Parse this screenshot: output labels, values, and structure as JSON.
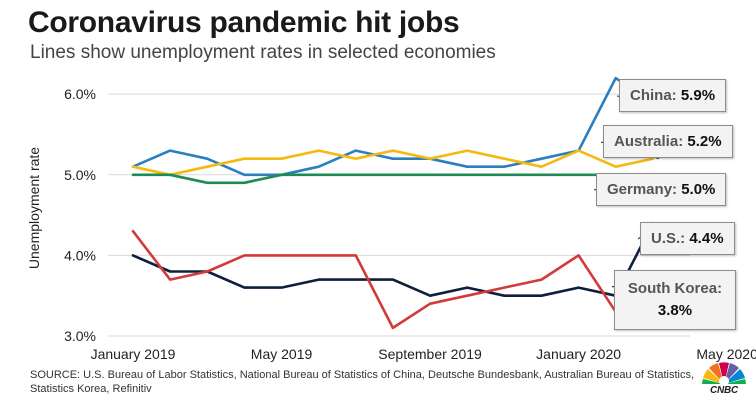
{
  "title": "Coronavirus pandemic hit jobs",
  "subtitle": "Lines show unemployment rates in selected economies",
  "source": "SOURCE: U.S. Bureau of Labor Statistics, National Bureau of Statistics of China, Deutsche Bundesbank, Australian Bureau of Statistics, Statistics Korea, Refinitiv",
  "logo": {
    "text": "CNBC",
    "icon": "nbc-peacock-icon"
  },
  "callouts": [
    {
      "name": "China:",
      "value": "5.9%"
    },
    {
      "name": "Australia:",
      "value": "5.2%"
    },
    {
      "name": "Germany:",
      "value": "5.0%"
    },
    {
      "name": "U.S.:",
      "value": "4.4%"
    },
    {
      "name": "South Korea:",
      "value": "3.8%"
    }
  ],
  "chart_data": {
    "type": "line",
    "title": "Coronavirus pandemic hit jobs",
    "subtitle": "Lines show unemployment rates in selected economies",
    "xlabel": "",
    "ylabel": "Unemployment rate",
    "x": [
      "2019-01",
      "2019-02",
      "2019-03",
      "2019-04",
      "2019-05",
      "2019-06",
      "2019-07",
      "2019-08",
      "2019-09",
      "2019-10",
      "2019-11",
      "2019-12",
      "2020-01",
      "2020-02",
      "2020-03",
      "2020-04"
    ],
    "x_ticks": [
      "January 2019",
      "May 2019",
      "September 2019",
      "January 2020",
      "May 2020"
    ],
    "y_ticks": [
      "3.0%",
      "4.0%",
      "5.0%",
      "6.0%"
    ],
    "ylim": [
      2.95,
      6.3
    ],
    "grid": true,
    "series": [
      {
        "name": "China",
        "color": "#2a7fc1",
        "values": [
          5.1,
          5.3,
          5.2,
          5.0,
          5.0,
          5.1,
          5.3,
          5.2,
          5.2,
          5.1,
          5.1,
          5.2,
          5.3,
          6.2,
          5.9,
          null
        ]
      },
      {
        "name": "Australia",
        "color": "#f5b90f",
        "values": [
          5.1,
          5.0,
          5.1,
          5.2,
          5.2,
          5.3,
          5.2,
          5.3,
          5.2,
          5.3,
          5.2,
          5.1,
          5.3,
          5.1,
          5.2,
          null
        ]
      },
      {
        "name": "Germany",
        "color": "#1e8a55",
        "values": [
          5.0,
          5.0,
          4.9,
          4.9,
          5.0,
          5.0,
          5.0,
          5.0,
          5.0,
          5.0,
          5.0,
          5.0,
          5.0,
          5.0,
          5.0,
          null
        ]
      },
      {
        "name": "U.S.",
        "color": "#0e1e3c",
        "values": [
          4.0,
          3.8,
          3.8,
          3.6,
          3.6,
          3.7,
          3.7,
          3.7,
          3.5,
          3.6,
          3.5,
          3.5,
          3.6,
          3.5,
          4.4,
          null
        ]
      },
      {
        "name": "South Korea",
        "color": "#d33a3a",
        "values": [
          4.3,
          3.7,
          3.8,
          4.0,
          4.0,
          4.0,
          4.0,
          3.1,
          3.4,
          3.5,
          3.6,
          3.7,
          4.0,
          3.3,
          3.8,
          null
        ]
      }
    ]
  }
}
